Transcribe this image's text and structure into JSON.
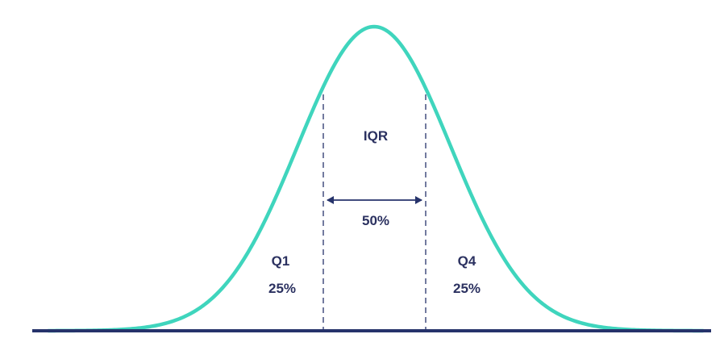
{
  "diagram": {
    "center_label": "IQR",
    "center_percent": "50%",
    "left_label": "Q1",
    "left_percent": "25%",
    "right_label": "Q4",
    "right_percent": "25%"
  },
  "colors": {
    "curve": "#3fd5bd",
    "axis": "#26336b",
    "text": "#2b3160"
  }
}
